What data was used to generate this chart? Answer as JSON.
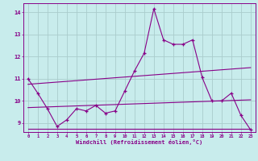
{
  "xlabel": "Windchill (Refroidissement éolien,°C)",
  "bg_color": "#c8ecec",
  "line_color": "#880088",
  "grid_color": "#aacccc",
  "xlim": [
    -0.5,
    23.5
  ],
  "ylim": [
    8.6,
    14.4
  ],
  "xticks": [
    0,
    1,
    2,
    3,
    4,
    5,
    6,
    7,
    8,
    9,
    10,
    11,
    12,
    13,
    14,
    15,
    16,
    17,
    18,
    19,
    20,
    21,
    22,
    23
  ],
  "yticks": [
    9,
    10,
    11,
    12,
    13,
    14
  ],
  "data_x": [
    0,
    1,
    2,
    3,
    4,
    5,
    6,
    7,
    8,
    9,
    10,
    11,
    12,
    13,
    14,
    15,
    16,
    17,
    18,
    19,
    20,
    21,
    22,
    23
  ],
  "data_y1": [
    11.0,
    10.35,
    9.65,
    8.85,
    9.15,
    9.65,
    9.55,
    9.8,
    9.45,
    9.55,
    10.45,
    11.35,
    12.15,
    14.15,
    12.75,
    12.55,
    12.55,
    12.75,
    11.05,
    10.0,
    10.0,
    10.35,
    9.35,
    8.7
  ],
  "line1_x": [
    0,
    23
  ],
  "line1_y": [
    10.75,
    11.5
  ],
  "line2_x": [
    0,
    23
  ],
  "line2_y": [
    8.75,
    8.75
  ],
  "line3_x": [
    0,
    23
  ],
  "line3_y": [
    9.7,
    10.05
  ]
}
